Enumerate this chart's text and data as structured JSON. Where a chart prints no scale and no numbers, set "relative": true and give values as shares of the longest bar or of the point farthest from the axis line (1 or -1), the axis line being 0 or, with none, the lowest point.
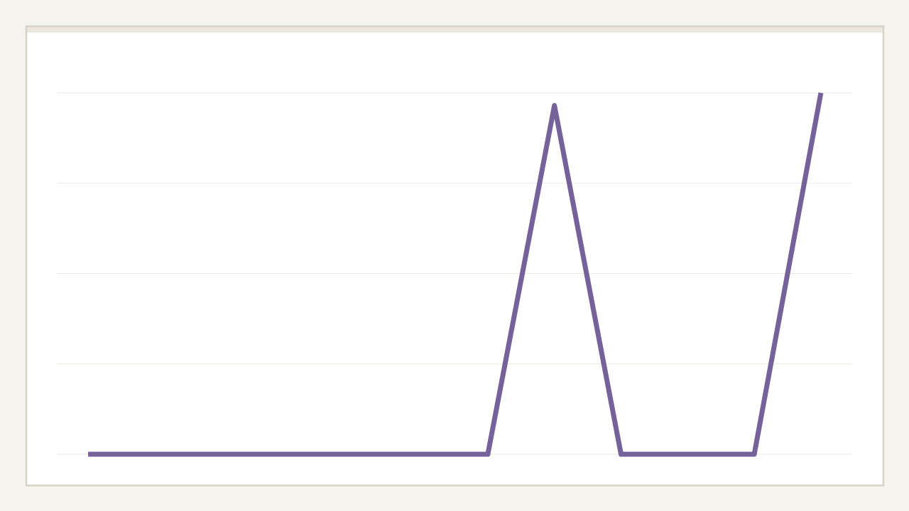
{
  "chart_data": {
    "type": "line",
    "relative": true,
    "grid": "y",
    "categories": [
      null,
      null,
      null,
      null,
      null,
      null,
      null,
      null,
      null,
      null,
      null,
      null
    ],
    "series": [
      {
        "color": "#76629b",
        "values": [
          0,
          0,
          0,
          0,
          0,
          0,
          0,
          0.965,
          0,
          0,
          0,
          1
        ]
      }
    ]
  }
}
